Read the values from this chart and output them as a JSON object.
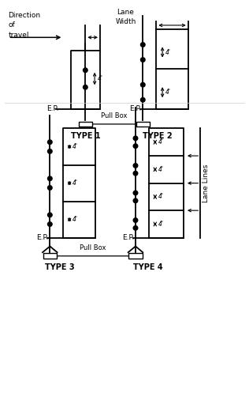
{
  "bg_color": "#ffffff",
  "line_color": "#000000",
  "text_color": "#000000",
  "fig_width": 3.16,
  "fig_height": 4.97,
  "dpi": 100,
  "xlim": [
    0,
    10
  ],
  "ylim": [
    0,
    16
  ]
}
